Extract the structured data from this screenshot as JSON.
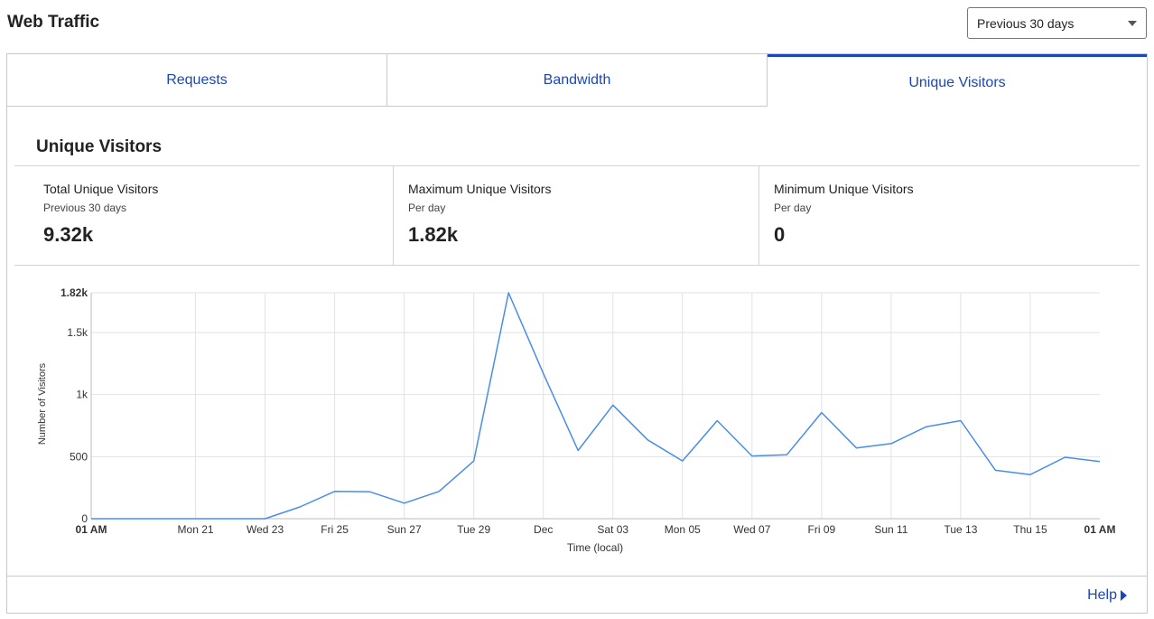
{
  "header": {
    "title": "Web Traffic",
    "range_select": {
      "value": "Previous 30 days"
    }
  },
  "tabs": [
    {
      "label": "Requests",
      "active": false
    },
    {
      "label": "Bandwidth",
      "active": false
    },
    {
      "label": "Unique Visitors",
      "active": true
    }
  ],
  "section": {
    "title": "Unique Visitors"
  },
  "stats": [
    {
      "label": "Total Unique Visitors",
      "sublabel": "Previous 30 days",
      "value": "9.32k"
    },
    {
      "label": "Maximum Unique Visitors",
      "sublabel": "Per day",
      "value": "1.82k"
    },
    {
      "label": "Minimum Unique Visitors",
      "sublabel": "Per day",
      "value": "0"
    }
  ],
  "chart_data": {
    "type": "line",
    "xlabel": "Time (local)",
    "ylabel": "Number of Visitors",
    "ylim": [
      0,
      1820
    ],
    "y_ticks": [
      {
        "value": 0,
        "label": "0",
        "bold": false
      },
      {
        "value": 500,
        "label": "500",
        "bold": false
      },
      {
        "value": 1000,
        "label": "1k",
        "bold": false
      },
      {
        "value": 1500,
        "label": "1.5k",
        "bold": false
      },
      {
        "value": 1820,
        "label": "1.82k",
        "bold": true
      }
    ],
    "x_ticks": [
      {
        "index": 0,
        "label": "01 AM",
        "bold": true
      },
      {
        "index": 3,
        "label": "Mon 21",
        "bold": false
      },
      {
        "index": 5,
        "label": "Wed 23",
        "bold": false
      },
      {
        "index": 7,
        "label": "Fri 25",
        "bold": false
      },
      {
        "index": 9,
        "label": "Sun 27",
        "bold": false
      },
      {
        "index": 11,
        "label": "Tue 29",
        "bold": false
      },
      {
        "index": 13,
        "label": "Dec",
        "bold": false
      },
      {
        "index": 15,
        "label": "Sat 03",
        "bold": false
      },
      {
        "index": 17,
        "label": "Mon 05",
        "bold": false
      },
      {
        "index": 19,
        "label": "Wed 07",
        "bold": false
      },
      {
        "index": 21,
        "label": "Fri 09",
        "bold": false
      },
      {
        "index": 23,
        "label": "Sun 11",
        "bold": false
      },
      {
        "index": 25,
        "label": "Tue 13",
        "bold": false
      },
      {
        "index": 27,
        "label": "Thu 15",
        "bold": false
      },
      {
        "index": 29,
        "label": "01 AM",
        "bold": true
      }
    ],
    "x_count": 30,
    "series": [
      {
        "color": "#4a8de8",
        "values": [
          0,
          0,
          0,
          0,
          0,
          0,
          95,
          220,
          218,
          125,
          220,
          465,
          1820,
          1170,
          550,
          915,
          635,
          465,
          790,
          505,
          515,
          855,
          570,
          605,
          740,
          790,
          390,
          355,
          495,
          460
        ]
      }
    ],
    "grid": true,
    "legend": "none"
  },
  "footer": {
    "help_label": "Help"
  }
}
